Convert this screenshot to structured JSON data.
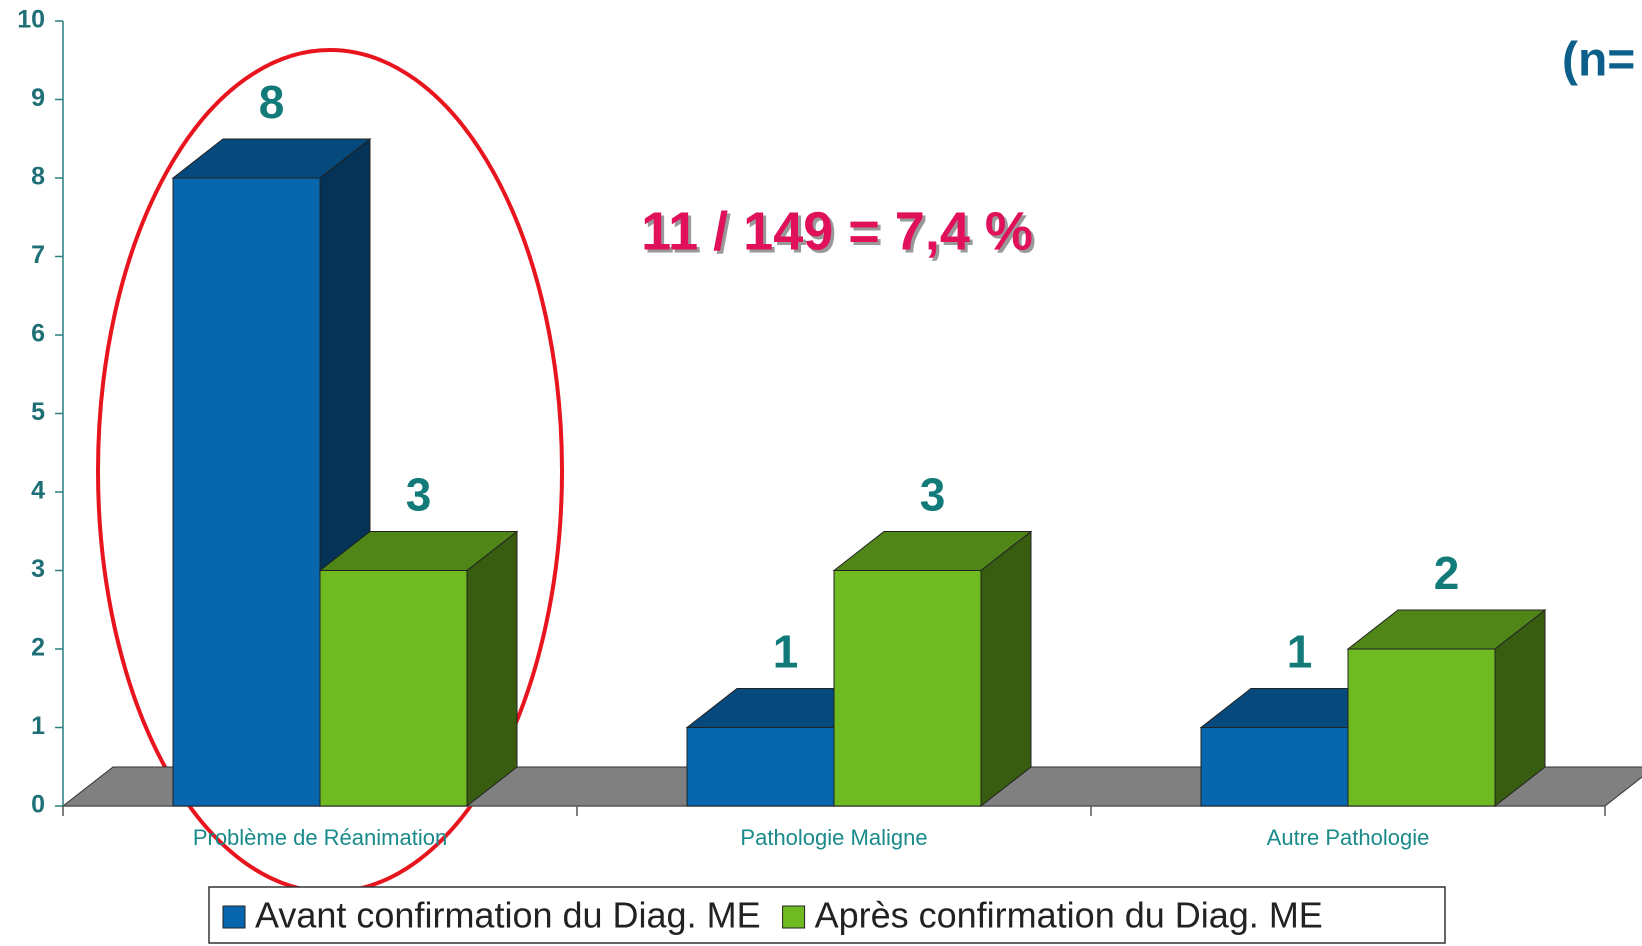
{
  "chart_data": {
    "type": "bar3d",
    "subtitle": "(n=",
    "annotation": "11 / 149 = 7,4 %",
    "categories": [
      "Problème de Réanimation",
      "Pathologie Maligne",
      "Autre Pathologie"
    ],
    "series": [
      {
        "name": "Avant confirmation du Diag. ME",
        "color": "#0766ad",
        "values": [
          8,
          1,
          1
        ]
      },
      {
        "name": "Après confirmation du Diag. ME",
        "color": "#6fba20",
        "values": [
          3,
          3,
          2
        ]
      }
    ],
    "ylim": [
      0,
      10
    ],
    "yticks": [
      0,
      1,
      2,
      3,
      4,
      5,
      6,
      7,
      8,
      9,
      10
    ],
    "legend": "bottom"
  }
}
